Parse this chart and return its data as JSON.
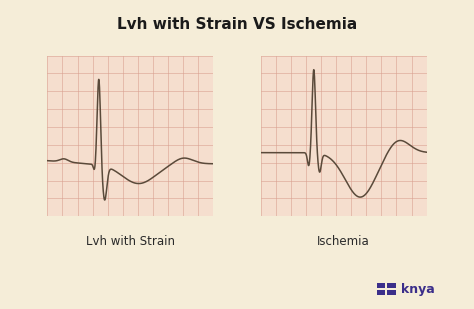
{
  "title": "Lvh with Strain VS Ischemia",
  "title_fontsize": 11,
  "title_fontweight": "bold",
  "bg_color": "#f5edd8",
  "panel_bg": "#f5dece",
  "grid_color": "#d9a090",
  "ecg_color": "#5a4a3a",
  "label1": "Lvh with Strain",
  "label2": "Ischemia",
  "label_fontsize": 8.5,
  "knya_color": "#3b2e8a",
  "knya_text": "knya",
  "knya_fontsize": 9
}
